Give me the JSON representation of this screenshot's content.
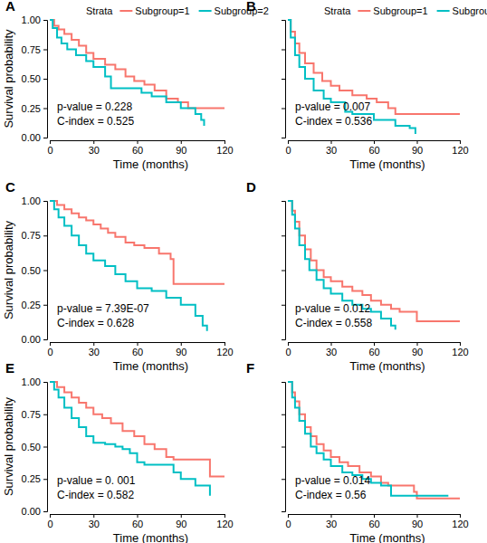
{
  "chart_data": [
    {
      "type": "line",
      "panel": "A",
      "legend": "top",
      "legend_title": "Strata",
      "line_style": "step",
      "x_label": "Time (months)",
      "y_label": "Survival probability",
      "annotations": [
        "p-value = 0.228",
        "C-index = 0.525"
      ],
      "xlim": [
        0,
        120
      ],
      "xticks": [
        0,
        30,
        60,
        90,
        120
      ],
      "ylim": [
        0,
        1
      ],
      "yticks": [
        {
          "value": 0,
          "label": "0.00"
        },
        {
          "value": 0.25,
          "label": "0.25"
        },
        {
          "value": 0.5,
          "label": "0.50"
        },
        {
          "value": 0.75,
          "label": "0.75"
        },
        {
          "value": 1,
          "label": "1.00"
        }
      ],
      "series": [
        {
          "name": "Subgroup=1",
          "color": "#F8766D",
          "x": [
            0,
            3,
            6,
            10,
            15,
            20,
            25,
            30,
            38,
            45,
            52,
            58,
            65,
            72,
            80,
            88,
            95,
            120
          ],
          "values": [
            1,
            0.95,
            0.92,
            0.88,
            0.83,
            0.78,
            0.72,
            0.67,
            0.62,
            0.58,
            0.52,
            0.48,
            0.45,
            0.4,
            0.33,
            0.3,
            0.25,
            0.25
          ]
        },
        {
          "name": "Subgroup=2",
          "color": "#00BFC4",
          "x": [
            0,
            2,
            5,
            8,
            12,
            18,
            25,
            30,
            38,
            42,
            63,
            70,
            80,
            90,
            100,
            104,
            106
          ],
          "values": [
            1,
            0.93,
            0.85,
            0.8,
            0.75,
            0.7,
            0.65,
            0.6,
            0.52,
            0.42,
            0.38,
            0.35,
            0.3,
            0.25,
            0.2,
            0.15,
            0.1
          ]
        }
      ]
    },
    {
      "type": "line",
      "panel": "B",
      "legend": "top",
      "legend_title": "Strata",
      "line_style": "step",
      "tick_labels": "x",
      "x_label": "Time (months)",
      "annotations": [
        "p-value = 0.007",
        "C-index = 0.536"
      ],
      "xlim": [
        0,
        120
      ],
      "xticks": [
        0,
        30,
        60,
        90,
        120
      ],
      "ylim": [
        0,
        1
      ],
      "yticks": [
        0,
        0.25,
        0.5,
        0.75,
        1
      ],
      "series": [
        {
          "name": "Subgroup=1",
          "color": "#F8766D",
          "x": [
            0,
            2,
            5,
            8,
            12,
            18,
            24,
            30,
            36,
            45,
            55,
            62,
            70,
            75,
            120
          ],
          "values": [
            1,
            0.9,
            0.8,
            0.72,
            0.63,
            0.55,
            0.48,
            0.44,
            0.4,
            0.36,
            0.33,
            0.3,
            0.25,
            0.2,
            0.2
          ]
        },
        {
          "name": "Subgroup=2",
          "color": "#00BFC4",
          "x": [
            0,
            2,
            5,
            8,
            12,
            18,
            25,
            30,
            40,
            45,
            60,
            75,
            85,
            89
          ],
          "values": [
            1,
            0.85,
            0.7,
            0.6,
            0.5,
            0.4,
            0.33,
            0.3,
            0.22,
            0.2,
            0.15,
            0.1,
            0.08,
            0.03
          ]
        }
      ]
    },
    {
      "type": "line",
      "panel": "C",
      "line_style": "step",
      "x_label": "Time (months)",
      "y_label": "Survival probability",
      "annotations": [
        "p-value = 7.39E-07",
        "C-index = 0.628"
      ],
      "xlim": [
        0,
        120
      ],
      "xticks": [
        0,
        30,
        60,
        90,
        120
      ],
      "ylim": [
        0,
        1
      ],
      "yticks": [
        {
          "value": 0,
          "label": "0.00"
        },
        {
          "value": 0.25,
          "label": "0.25"
        },
        {
          "value": 0.5,
          "label": "0.50"
        },
        {
          "value": 0.75,
          "label": "0.75"
        },
        {
          "value": 1,
          "label": "1.00"
        }
      ],
      "series": [
        {
          "name": "Subgroup=1",
          "color": "#F8766D",
          "x": [
            0,
            5,
            10,
            15,
            20,
            25,
            30,
            35,
            40,
            45,
            52,
            58,
            65,
            75,
            83,
            85,
            120
          ],
          "values": [
            1,
            0.97,
            0.94,
            0.91,
            0.88,
            0.86,
            0.83,
            0.8,
            0.77,
            0.74,
            0.7,
            0.68,
            0.66,
            0.62,
            0.58,
            0.4,
            0.4
          ]
        },
        {
          "name": "Subgroup=2",
          "color": "#00BFC4",
          "x": [
            0,
            3,
            6,
            10,
            15,
            20,
            25,
            30,
            38,
            45,
            52,
            60,
            70,
            80,
            90,
            100,
            105,
            108
          ],
          "values": [
            1,
            0.94,
            0.88,
            0.82,
            0.75,
            0.68,
            0.62,
            0.57,
            0.53,
            0.47,
            0.42,
            0.37,
            0.35,
            0.3,
            0.25,
            0.17,
            0.1,
            0.06
          ]
        }
      ]
    },
    {
      "type": "line",
      "panel": "D",
      "line_style": "step",
      "tick_labels": "x",
      "x_label": "Time (months)",
      "annotations": [
        "p-value = 0.012",
        "C-index = 0.558"
      ],
      "xlim": [
        0,
        120
      ],
      "xticks": [
        0,
        30,
        60,
        90,
        120
      ],
      "ylim": [
        0,
        1
      ],
      "yticks": [
        0,
        0.25,
        0.5,
        0.75,
        1
      ],
      "series": [
        {
          "name": "Subgroup=1",
          "color": "#F8766D",
          "x": [
            0,
            3,
            5,
            8,
            12,
            16,
            20,
            25,
            30,
            38,
            45,
            52,
            58,
            65,
            72,
            78,
            90,
            120
          ],
          "values": [
            1,
            0.93,
            0.85,
            0.75,
            0.65,
            0.57,
            0.5,
            0.45,
            0.42,
            0.38,
            0.35,
            0.32,
            0.28,
            0.25,
            0.22,
            0.2,
            0.13,
            0.13
          ]
        },
        {
          "name": "Subgroup=2",
          "color": "#00BFC4",
          "x": [
            0,
            3,
            5,
            8,
            12,
            15,
            20,
            25,
            30,
            38,
            45,
            52,
            58,
            65,
            72,
            75
          ],
          "values": [
            1,
            0.9,
            0.8,
            0.68,
            0.58,
            0.5,
            0.43,
            0.37,
            0.33,
            0.28,
            0.25,
            0.22,
            0.2,
            0.15,
            0.1,
            0.07
          ]
        }
      ]
    },
    {
      "type": "line",
      "panel": "E",
      "line_style": "step",
      "x_label": "Time (months)",
      "y_label": "Survival probability",
      "annotations": [
        "p-value = 0. 001",
        "C-index = 0.582"
      ],
      "xlim": [
        0,
        120
      ],
      "xticks": [
        0,
        30,
        60,
        90,
        120
      ],
      "ylim": [
        0,
        1
      ],
      "yticks": [
        {
          "value": 0,
          "label": "0.00"
        },
        {
          "value": 0.25,
          "label": "0.25"
        },
        {
          "value": 0.5,
          "label": "0.50"
        },
        {
          "value": 0.75,
          "label": "0.75"
        },
        {
          "value": 1,
          "label": "1.00"
        }
      ],
      "series": [
        {
          "name": "Subgroup=1",
          "color": "#F8766D",
          "x": [
            0,
            5,
            10,
            15,
            20,
            25,
            30,
            36,
            42,
            50,
            58,
            65,
            72,
            80,
            85,
            110,
            120
          ],
          "values": [
            1,
            0.96,
            0.92,
            0.88,
            0.84,
            0.8,
            0.75,
            0.72,
            0.68,
            0.62,
            0.58,
            0.52,
            0.48,
            0.42,
            0.4,
            0.27,
            0.27
          ]
        },
        {
          "name": "Subgroup=2",
          "color": "#00BFC4",
          "x": [
            0,
            3,
            6,
            10,
            15,
            20,
            25,
            30,
            38,
            45,
            50,
            55,
            60,
            65,
            85,
            90,
            100,
            110
          ],
          "values": [
            1,
            0.94,
            0.88,
            0.8,
            0.72,
            0.65,
            0.58,
            0.53,
            0.52,
            0.5,
            0.48,
            0.45,
            0.38,
            0.36,
            0.3,
            0.25,
            0.2,
            0.12
          ]
        }
      ]
    },
    {
      "type": "line",
      "panel": "F",
      "line_style": "step",
      "tick_labels": "x",
      "x_label": "Time (months)",
      "annotations": [
        "p-value = 0.014",
        "C-index = 0.56"
      ],
      "xlim": [
        0,
        120
      ],
      "xticks": [
        0,
        30,
        60,
        90,
        120
      ],
      "ylim": [
        0,
        1
      ],
      "yticks": [
        0,
        0.25,
        0.5,
        0.75,
        1
      ],
      "series": [
        {
          "name": "Subgroup=1",
          "color": "#F8766D",
          "x": [
            0,
            3,
            5,
            8,
            12,
            16,
            20,
            25,
            30,
            36,
            42,
            50,
            58,
            65,
            70,
            88,
            90,
            120
          ],
          "values": [
            1,
            0.92,
            0.85,
            0.75,
            0.65,
            0.58,
            0.52,
            0.47,
            0.42,
            0.38,
            0.35,
            0.3,
            0.27,
            0.22,
            0.2,
            0.15,
            0.1,
            0.1
          ]
        },
        {
          "name": "Subgroup=2",
          "color": "#00BFC4",
          "x": [
            0,
            3,
            5,
            8,
            12,
            16,
            20,
            25,
            30,
            38,
            45,
            52,
            58,
            65,
            72,
            112
          ],
          "values": [
            1,
            0.88,
            0.8,
            0.7,
            0.6,
            0.5,
            0.45,
            0.4,
            0.35,
            0.3,
            0.28,
            0.25,
            0.22,
            0.2,
            0.12,
            0.12
          ]
        }
      ]
    }
  ]
}
